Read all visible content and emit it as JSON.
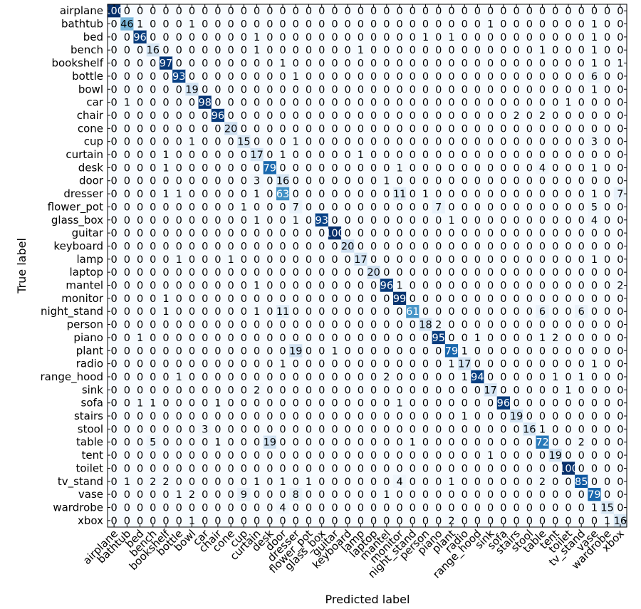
{
  "chart_data": {
    "type": "heatmap",
    "title": "",
    "xlabel": "Predicted label",
    "ylabel": "True label",
    "x_tick_rotation_deg": 45,
    "colormap": "Blues",
    "color_range": [
      0,
      100
    ],
    "grid": false,
    "labels": [
      "airplane",
      "bathtub",
      "bed",
      "bench",
      "bookshelf",
      "bottle",
      "bowl",
      "car",
      "chair",
      "cone",
      "cup",
      "curtain",
      "desk",
      "door",
      "dresser",
      "flower_pot",
      "glass_box",
      "guitar",
      "keyboard",
      "lamp",
      "laptop",
      "mantel",
      "monitor",
      "night_stand",
      "person",
      "piano",
      "plant",
      "radio",
      "range_hood",
      "sink",
      "sofa",
      "stairs",
      "stool",
      "table",
      "tent",
      "toilet",
      "tv_stand",
      "vase",
      "wardrobe",
      "xbox"
    ],
    "matrix": [
      [
        100,
        0,
        0,
        0,
        0,
        0,
        0,
        0,
        0,
        0,
        0,
        0,
        0,
        0,
        0,
        0,
        0,
        0,
        0,
        0,
        0,
        0,
        0,
        0,
        0,
        0,
        0,
        0,
        0,
        0,
        0,
        0,
        0,
        0,
        0,
        0,
        0,
        0,
        0,
        0
      ],
      [
        0,
        46,
        1,
        0,
        0,
        0,
        1,
        0,
        0,
        0,
        0,
        0,
        0,
        0,
        0,
        0,
        0,
        0,
        0,
        0,
        0,
        0,
        0,
        0,
        0,
        0,
        0,
        0,
        0,
        1,
        0,
        0,
        0,
        0,
        0,
        0,
        0,
        1,
        0,
        0
      ],
      [
        0,
        0,
        96,
        0,
        0,
        0,
        0,
        0,
        0,
        0,
        0,
        1,
        0,
        0,
        0,
        0,
        0,
        0,
        0,
        0,
        0,
        0,
        0,
        0,
        1,
        0,
        1,
        0,
        0,
        0,
        0,
        0,
        0,
        0,
        0,
        0,
        0,
        1,
        0,
        0
      ],
      [
        0,
        0,
        0,
        16,
        0,
        0,
        0,
        0,
        0,
        0,
        0,
        1,
        0,
        0,
        0,
        0,
        0,
        0,
        0,
        1,
        0,
        0,
        0,
        0,
        0,
        0,
        0,
        0,
        0,
        0,
        0,
        0,
        0,
        1,
        0,
        0,
        0,
        1,
        0,
        0
      ],
      [
        0,
        0,
        0,
        0,
        97,
        0,
        0,
        0,
        0,
        0,
        0,
        0,
        0,
        1,
        0,
        0,
        0,
        0,
        0,
        0,
        0,
        0,
        0,
        0,
        0,
        0,
        0,
        0,
        0,
        0,
        0,
        0,
        0,
        0,
        0,
        0,
        0,
        1,
        0,
        1
      ],
      [
        0,
        0,
        0,
        0,
        0,
        93,
        0,
        0,
        0,
        0,
        0,
        0,
        0,
        0,
        1,
        0,
        0,
        0,
        0,
        0,
        0,
        0,
        0,
        0,
        0,
        0,
        0,
        0,
        0,
        0,
        0,
        0,
        0,
        0,
        0,
        0,
        0,
        6,
        0,
        0
      ],
      [
        0,
        0,
        0,
        0,
        0,
        0,
        19,
        0,
        0,
        0,
        0,
        0,
        0,
        0,
        0,
        0,
        0,
        0,
        0,
        0,
        0,
        0,
        0,
        0,
        0,
        0,
        0,
        0,
        0,
        0,
        0,
        0,
        0,
        0,
        0,
        0,
        0,
        1,
        0,
        0
      ],
      [
        0,
        1,
        0,
        0,
        0,
        0,
        0,
        98,
        0,
        0,
        0,
        0,
        0,
        0,
        0,
        0,
        0,
        0,
        0,
        0,
        0,
        0,
        0,
        0,
        0,
        0,
        0,
        0,
        0,
        0,
        0,
        0,
        0,
        0,
        0,
        1,
        0,
        0,
        0,
        0
      ],
      [
        0,
        0,
        0,
        0,
        0,
        0,
        0,
        0,
        96,
        0,
        0,
        0,
        0,
        0,
        0,
        0,
        0,
        0,
        0,
        0,
        0,
        0,
        0,
        0,
        0,
        0,
        0,
        0,
        0,
        0,
        0,
        2,
        0,
        2,
        0,
        0,
        0,
        0,
        0,
        0
      ],
      [
        0,
        0,
        0,
        0,
        0,
        0,
        0,
        0,
        0,
        20,
        0,
        0,
        0,
        0,
        0,
        0,
        0,
        0,
        0,
        0,
        0,
        0,
        0,
        0,
        0,
        0,
        0,
        0,
        0,
        0,
        0,
        0,
        0,
        0,
        0,
        0,
        0,
        0,
        0,
        0
      ],
      [
        0,
        0,
        0,
        0,
        0,
        0,
        1,
        0,
        0,
        0,
        15,
        0,
        0,
        0,
        1,
        0,
        0,
        0,
        0,
        0,
        0,
        0,
        0,
        0,
        0,
        0,
        0,
        0,
        0,
        0,
        0,
        0,
        0,
        0,
        0,
        0,
        0,
        3,
        0,
        0
      ],
      [
        0,
        0,
        0,
        0,
        1,
        0,
        0,
        0,
        0,
        0,
        0,
        17,
        0,
        1,
        0,
        0,
        0,
        0,
        0,
        1,
        0,
        0,
        0,
        0,
        0,
        0,
        0,
        0,
        0,
        0,
        0,
        0,
        0,
        0,
        0,
        0,
        0,
        0,
        0,
        0
      ],
      [
        0,
        0,
        0,
        0,
        1,
        0,
        0,
        0,
        0,
        0,
        0,
        0,
        79,
        0,
        0,
        0,
        0,
        0,
        0,
        0,
        0,
        0,
        1,
        0,
        0,
        0,
        0,
        0,
        0,
        0,
        0,
        0,
        0,
        4,
        0,
        0,
        0,
        1,
        0,
        0
      ],
      [
        0,
        0,
        0,
        0,
        0,
        0,
        0,
        0,
        0,
        0,
        0,
        3,
        0,
        16,
        0,
        0,
        0,
        0,
        0,
        0,
        0,
        1,
        0,
        0,
        0,
        0,
        0,
        0,
        0,
        0,
        0,
        0,
        0,
        0,
        0,
        0,
        0,
        0,
        0,
        0
      ],
      [
        0,
        0,
        0,
        0,
        1,
        1,
        0,
        0,
        0,
        0,
        0,
        1,
        0,
        63,
        0,
        0,
        0,
        0,
        0,
        0,
        0,
        0,
        11,
        0,
        1,
        0,
        0,
        0,
        0,
        0,
        0,
        0,
        0,
        0,
        0,
        0,
        0,
        1,
        0,
        7
      ],
      [
        0,
        0,
        0,
        0,
        0,
        0,
        0,
        0,
        0,
        0,
        1,
        0,
        0,
        0,
        7,
        0,
        0,
        0,
        0,
        0,
        0,
        0,
        0,
        0,
        0,
        7,
        0,
        0,
        0,
        0,
        0,
        0,
        0,
        0,
        0,
        0,
        0,
        5,
        0,
        0
      ],
      [
        0,
        0,
        0,
        0,
        0,
        0,
        0,
        0,
        0,
        0,
        0,
        1,
        0,
        0,
        1,
        0,
        93,
        0,
        0,
        0,
        0,
        0,
        0,
        0,
        0,
        0,
        1,
        0,
        0,
        0,
        0,
        0,
        0,
        0,
        0,
        0,
        0,
        4,
        0,
        0
      ],
      [
        0,
        0,
        0,
        0,
        0,
        0,
        0,
        0,
        0,
        0,
        0,
        0,
        0,
        0,
        0,
        0,
        0,
        100,
        0,
        0,
        0,
        0,
        0,
        0,
        0,
        0,
        0,
        0,
        0,
        0,
        0,
        0,
        0,
        0,
        0,
        0,
        0,
        0,
        0,
        0
      ],
      [
        0,
        0,
        0,
        0,
        0,
        0,
        0,
        0,
        0,
        0,
        0,
        0,
        0,
        0,
        0,
        0,
        0,
        0,
        20,
        0,
        0,
        0,
        0,
        0,
        0,
        0,
        0,
        0,
        0,
        0,
        0,
        0,
        0,
        0,
        0,
        0,
        0,
        0,
        0,
        0
      ],
      [
        0,
        0,
        0,
        0,
        0,
        1,
        0,
        0,
        0,
        1,
        0,
        0,
        0,
        0,
        0,
        0,
        0,
        0,
        0,
        17,
        0,
        0,
        0,
        0,
        0,
        0,
        0,
        0,
        0,
        0,
        0,
        0,
        0,
        0,
        0,
        0,
        0,
        1,
        0,
        0
      ],
      [
        0,
        0,
        0,
        0,
        0,
        0,
        0,
        0,
        0,
        0,
        0,
        0,
        0,
        0,
        0,
        0,
        0,
        0,
        0,
        0,
        20,
        0,
        0,
        0,
        0,
        0,
        0,
        0,
        0,
        0,
        0,
        0,
        0,
        0,
        0,
        0,
        0,
        0,
        0,
        0
      ],
      [
        0,
        0,
        0,
        0,
        0,
        0,
        0,
        0,
        0,
        0,
        0,
        1,
        0,
        0,
        0,
        0,
        0,
        0,
        0,
        0,
        0,
        96,
        1,
        0,
        0,
        0,
        0,
        0,
        0,
        0,
        0,
        0,
        0,
        0,
        0,
        0,
        0,
        0,
        0,
        2
      ],
      [
        0,
        0,
        0,
        0,
        1,
        0,
        0,
        0,
        0,
        0,
        0,
        0,
        0,
        0,
        0,
        0,
        0,
        0,
        0,
        0,
        0,
        0,
        99,
        0,
        0,
        0,
        0,
        0,
        0,
        0,
        0,
        0,
        0,
        0,
        0,
        0,
        0,
        0,
        0,
        0
      ],
      [
        0,
        0,
        0,
        0,
        1,
        0,
        0,
        0,
        0,
        0,
        0,
        1,
        0,
        11,
        0,
        0,
        0,
        0,
        0,
        0,
        0,
        0,
        0,
        61,
        0,
        0,
        0,
        0,
        0,
        0,
        0,
        0,
        0,
        6,
        0,
        0,
        6,
        0,
        0,
        0
      ],
      [
        0,
        0,
        0,
        0,
        0,
        0,
        0,
        0,
        0,
        0,
        0,
        0,
        0,
        0,
        0,
        0,
        0,
        0,
        0,
        0,
        0,
        0,
        0,
        0,
        18,
        2,
        0,
        0,
        0,
        0,
        0,
        0,
        0,
        0,
        0,
        0,
        0,
        0,
        0,
        0
      ],
      [
        0,
        0,
        1,
        0,
        0,
        0,
        0,
        0,
        0,
        0,
        0,
        0,
        0,
        0,
        0,
        0,
        0,
        0,
        0,
        0,
        0,
        0,
        0,
        0,
        0,
        95,
        0,
        0,
        1,
        0,
        0,
        0,
        0,
        1,
        2,
        0,
        0,
        0,
        0,
        0
      ],
      [
        0,
        0,
        0,
        0,
        0,
        0,
        0,
        0,
        0,
        0,
        0,
        0,
        0,
        0,
        19,
        0,
        0,
        1,
        0,
        0,
        0,
        0,
        0,
        0,
        0,
        0,
        79,
        1,
        0,
        0,
        0,
        0,
        0,
        0,
        0,
        0,
        0,
        0,
        0,
        0
      ],
      [
        0,
        0,
        0,
        0,
        0,
        0,
        0,
        0,
        0,
        0,
        0,
        0,
        0,
        1,
        0,
        0,
        0,
        0,
        0,
        0,
        0,
        0,
        0,
        0,
        0,
        0,
        1,
        17,
        0,
        0,
        0,
        0,
        0,
        0,
        0,
        0,
        0,
        1,
        0,
        0
      ],
      [
        0,
        0,
        0,
        0,
        0,
        1,
        0,
        0,
        0,
        0,
        0,
        0,
        0,
        0,
        0,
        0,
        0,
        0,
        0,
        0,
        0,
        2,
        0,
        0,
        0,
        0,
        0,
        1,
        94,
        0,
        0,
        0,
        0,
        0,
        1,
        0,
        1,
        0,
        0,
        0
      ],
      [
        0,
        0,
        0,
        0,
        0,
        0,
        0,
        0,
        0,
        0,
        0,
        2,
        0,
        0,
        0,
        0,
        0,
        0,
        0,
        0,
        0,
        0,
        0,
        0,
        0,
        0,
        0,
        0,
        0,
        17,
        0,
        0,
        0,
        0,
        0,
        1,
        0,
        0,
        0,
        0
      ],
      [
        0,
        0,
        1,
        1,
        0,
        0,
        0,
        0,
        1,
        0,
        0,
        0,
        0,
        0,
        0,
        0,
        0,
        0,
        0,
        0,
        0,
        0,
        1,
        0,
        0,
        0,
        0,
        0,
        0,
        0,
        96,
        0,
        0,
        0,
        0,
        0,
        0,
        0,
        0,
        0
      ],
      [
        0,
        0,
        0,
        0,
        0,
        0,
        0,
        0,
        0,
        0,
        0,
        0,
        0,
        0,
        0,
        0,
        0,
        0,
        0,
        0,
        0,
        0,
        0,
        0,
        0,
        0,
        0,
        1,
        0,
        0,
        0,
        19,
        0,
        0,
        0,
        0,
        0,
        0,
        0,
        0
      ],
      [
        0,
        0,
        0,
        0,
        0,
        0,
        0,
        3,
        0,
        0,
        0,
        0,
        0,
        0,
        0,
        0,
        0,
        0,
        0,
        0,
        0,
        0,
        0,
        0,
        0,
        0,
        0,
        0,
        0,
        0,
        0,
        0,
        16,
        1,
        0,
        0,
        0,
        0,
        0,
        0
      ],
      [
        0,
        0,
        0,
        5,
        0,
        0,
        0,
        0,
        1,
        0,
        0,
        0,
        19,
        0,
        0,
        0,
        0,
        0,
        0,
        0,
        0,
        0,
        0,
        1,
        0,
        0,
        0,
        0,
        0,
        0,
        0,
        0,
        0,
        72,
        0,
        0,
        2,
        0,
        0,
        0
      ],
      [
        0,
        0,
        0,
        0,
        0,
        0,
        0,
        0,
        0,
        0,
        0,
        0,
        0,
        0,
        0,
        0,
        0,
        0,
        0,
        0,
        0,
        0,
        0,
        0,
        0,
        0,
        0,
        0,
        0,
        1,
        0,
        0,
        0,
        0,
        19,
        0,
        0,
        0,
        0,
        0
      ],
      [
        0,
        0,
        0,
        0,
        0,
        0,
        0,
        0,
        0,
        0,
        0,
        0,
        0,
        0,
        0,
        0,
        0,
        0,
        0,
        0,
        0,
        0,
        0,
        0,
        0,
        0,
        0,
        0,
        0,
        0,
        0,
        0,
        0,
        0,
        0,
        100,
        0,
        0,
        0,
        0
      ],
      [
        0,
        1,
        0,
        2,
        2,
        0,
        0,
        0,
        0,
        0,
        0,
        1,
        0,
        1,
        0,
        1,
        0,
        0,
        0,
        0,
        0,
        0,
        4,
        0,
        0,
        0,
        1,
        0,
        0,
        0,
        0,
        0,
        0,
        2,
        0,
        0,
        85,
        0,
        0,
        0
      ],
      [
        0,
        0,
        0,
        0,
        0,
        1,
        2,
        0,
        0,
        0,
        9,
        0,
        0,
        0,
        8,
        0,
        0,
        0,
        0,
        0,
        0,
        1,
        0,
        0,
        0,
        0,
        0,
        0,
        0,
        0,
        0,
        0,
        0,
        0,
        0,
        0,
        0,
        79,
        0,
        0
      ],
      [
        0,
        0,
        0,
        0,
        0,
        0,
        0,
        0,
        0,
        0,
        0,
        0,
        0,
        4,
        0,
        0,
        0,
        0,
        0,
        0,
        0,
        0,
        0,
        0,
        0,
        0,
        0,
        0,
        0,
        0,
        0,
        0,
        0,
        0,
        0,
        0,
        0,
        1,
        15,
        0
      ],
      [
        0,
        0,
        0,
        0,
        0,
        0,
        1,
        0,
        0,
        0,
        0,
        0,
        0,
        0,
        0,
        0,
        0,
        0,
        0,
        0,
        0,
        0,
        0,
        0,
        0,
        0,
        2,
        0,
        0,
        0,
        0,
        0,
        0,
        0,
        0,
        0,
        0,
        0,
        1,
        16
      ]
    ]
  }
}
